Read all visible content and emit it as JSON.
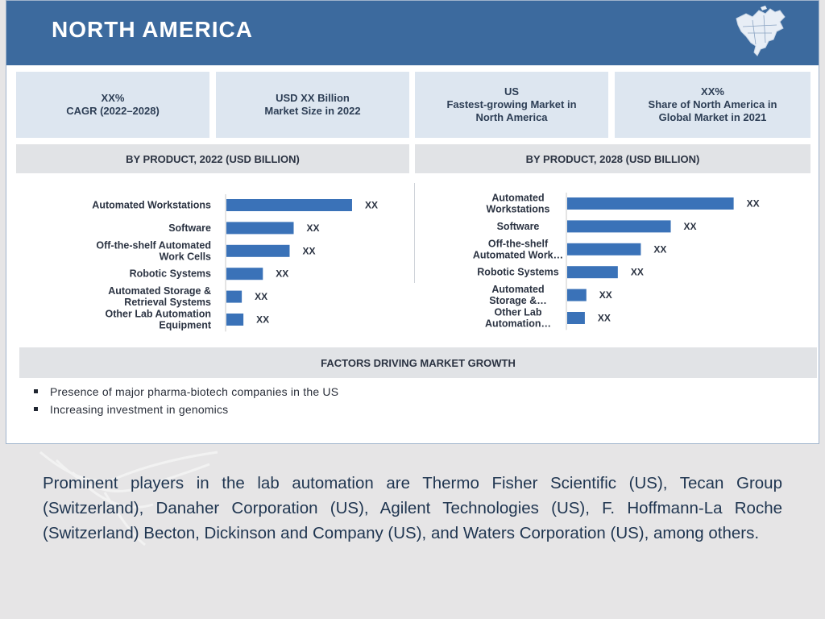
{
  "header": {
    "title": "NORTH AMERICA",
    "map_icon": "north-america-map-icon"
  },
  "stats": [
    {
      "text": "XX%\nCAGR (2022–2028)"
    },
    {
      "text": "USD  XX  Billion\nMarket Size in 2022"
    },
    {
      "text": "US\nFastest-growing Market in\nNorth America"
    },
    {
      "text": "XX%\nShare of North America in\nGlobal Market in 2021"
    }
  ],
  "chart_data": [
    {
      "type": "bar",
      "orientation": "horizontal",
      "title": "BY PRODUCT, 2022 (USD BILLION)",
      "categories": [
        [
          "Automated Workstations"
        ],
        [
          "Software"
        ],
        [
          "Off-the-shelf Automated",
          "Work Cells"
        ],
        [
          "Robotic Systems"
        ],
        [
          "Automated Storage &",
          "Retrieval Systems"
        ],
        [
          "Other Lab Automation",
          "Equipment"
        ]
      ],
      "values": [
        155,
        83,
        78,
        45,
        19,
        21
      ],
      "data_labels": [
        "XX",
        "XX",
        "XX",
        "XX",
        "XX",
        "XX"
      ],
      "bar_color": "#3a72b8",
      "xlim": [
        0,
        160
      ]
    },
    {
      "type": "bar",
      "orientation": "horizontal",
      "title": "BY PRODUCT, 2028 (USD BILLION)",
      "categories": [
        [
          "Automated",
          "Workstations"
        ],
        [
          "Software"
        ],
        [
          "Off-the-shelf",
          "Automated Work…"
        ],
        [
          "Robotic Systems"
        ],
        [
          "Automated",
          "Storage &…"
        ],
        [
          "Other Lab",
          "Automation…"
        ]
      ],
      "values": [
        217,
        135,
        96,
        66,
        25,
        23
      ],
      "data_labels": [
        "XX",
        "XX",
        "XX",
        "XX",
        "XX",
        "XX"
      ],
      "bar_color": "#3a72b8",
      "xlim": [
        0,
        230
      ]
    }
  ],
  "factors": {
    "title": "FACTORS DRIVING MARKET GROWTH",
    "items": [
      "Presence of major pharma-biotech companies in the US",
      "Increasing investment in genomics"
    ]
  },
  "caption": "Prominent players in the lab automation are Thermo Fisher Scientific (US), Tecan Group (Switzerland), Danaher Corporation (US), Agilent Technologies (US), F. Hoffmann-La Roche (Switzerland) Becton, Dickinson and Company (US), and Waters Corporation (US), among others."
}
